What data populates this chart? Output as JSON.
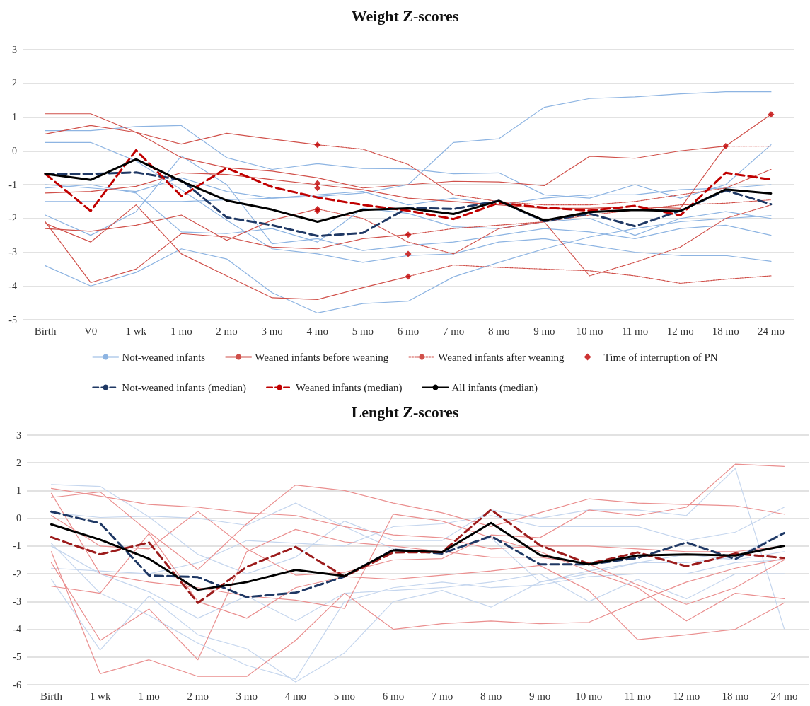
{
  "chart_data": [
    {
      "type": "line",
      "title": "Weight Z-scores",
      "categories": [
        "Birth",
        "V0",
        "1 wk",
        "1 mo",
        "2 mo",
        "3 mo",
        "4 mo",
        "5 mo",
        "6 mo",
        "7 mo",
        "8 mo",
        "9 mo",
        "10 mo",
        "11 mo",
        "12 mo",
        "18 mo",
        "24 mo"
      ],
      "ylim": [
        -5,
        3
      ],
      "yticks": [
        -5,
        -4,
        -3,
        -2,
        -1,
        0,
        1,
        2,
        3
      ],
      "grid": "y",
      "legend": "bottom",
      "marker": "none",
      "series": [
        {
          "name": "Not-weaned infants",
          "color": "#8db4e2",
          "line_style": "solid",
          "values": [
            -1.0,
            -1.1,
            -1.2,
            -0.8,
            -1.2,
            -1.4,
            -1.35,
            -1.25,
            -1.0,
            0.25,
            0.36,
            1.29,
            1.55,
            1.6,
            1.69,
            1.75,
            1.75
          ]
        },
        {
          "color": "#8db4e2",
          "line_style": "solid",
          "values": [
            -3.4,
            -4.0,
            -3.6,
            -2.9,
            -3.2,
            -4.2,
            -4.8,
            -4.52,
            -4.45,
            -3.73,
            -3.3,
            -2.9,
            -2.55,
            -2.3,
            -2.1,
            -2.0,
            -1.92
          ]
        },
        {
          "color": "#8db4e2",
          "line_style": "solid",
          "values": [
            0.6,
            0.6,
            0.72,
            0.75,
            -0.2,
            -0.55,
            -0.38,
            -0.52,
            -0.53,
            -0.68,
            -0.65,
            -1.3,
            -1.4,
            -1.0,
            -1.4,
            -1.0,
            0.18
          ]
        },
        {
          "color": "#8db4e2",
          "line_style": "solid",
          "values": [
            -1.9,
            -2.5,
            -1.8,
            -0.15,
            -1.0,
            -2.75,
            -2.6,
            -2.95,
            -2.8,
            -2.7,
            -2.5,
            -2.3,
            -2.4,
            -2.6,
            -2.3,
            -2.2,
            -2.5
          ]
        },
        {
          "color": "#8db4e2",
          "line_style": "solid",
          "values": [
            0.25,
            0.25,
            -0.3,
            -1.15,
            -2.05,
            -2.9,
            -3.05,
            -3.3,
            -3.1,
            -3.05,
            -2.7,
            -2.6,
            -2.8,
            -3.0,
            -3.1,
            -3.1,
            -3.27
          ]
        },
        {
          "color": "#8db4e2",
          "line_style": "solid",
          "values": [
            -1.5,
            -1.5,
            -1.5,
            -1.5,
            -1.45,
            -1.4,
            -1.3,
            -1.2,
            -1.6,
            -1.4,
            -1.6,
            -1.4,
            -1.3,
            -1.3,
            -1.15,
            -1.1,
            -1.0
          ]
        },
        {
          "color": "#8db4e2",
          "line_style": "solid",
          "values": [
            -1.1,
            -1.0,
            -1.25,
            -2.4,
            -2.45,
            -2.3,
            -2.7,
            -1.7,
            -1.85,
            -2.25,
            -2.3,
            -2.1,
            -2.0,
            -2.5,
            -2.0,
            -1.8,
            -2.0
          ]
        },
        {
          "name": "Weaned infants before weaning",
          "color": "#d0504a",
          "line_style": "solid",
          "values": [
            0.5,
            0.75,
            0.55,
            0.2,
            0.52,
            0.35,
            0.18,
            null,
            null,
            null,
            null,
            null,
            null,
            null,
            null,
            null,
            null
          ]
        },
        {
          "color": "#d0504a",
          "line_style": "solid",
          "values": [
            1.1,
            1.1,
            0.55,
            -0.2,
            -0.5,
            -0.6,
            -0.8,
            -1.1,
            -1.0,
            -0.9,
            -0.92,
            -1.03,
            -0.16,
            -0.22,
            0.0,
            0.14,
            null
          ]
        },
        {
          "color": "#d0504a",
          "line_style": "solid",
          "values": [
            -1.25,
            -1.2,
            -1.05,
            -0.65,
            -0.7,
            -0.85,
            -1.0,
            -1.15,
            -1.4,
            -1.5,
            -1.6,
            -1.7,
            -1.7,
            -1.65,
            -1.7,
            0.14,
            1.08
          ]
        },
        {
          "color": "#d0504a",
          "line_style": "solid",
          "values": [
            -2.1,
            -3.9,
            -3.5,
            -2.45,
            -2.55,
            -2.85,
            -2.9,
            -2.6,
            -2.48,
            null,
            null,
            null,
            null,
            null,
            null,
            null,
            null
          ]
        },
        {
          "color": "#d0504a",
          "line_style": "solid",
          "values": [
            -2.15,
            -2.7,
            -1.6,
            -3.05,
            -3.7,
            -4.35,
            -4.4,
            -4.05,
            -3.72,
            null,
            null,
            null,
            null,
            null,
            null,
            null,
            null
          ]
        },
        {
          "color": "#d0504a",
          "line_style": "solid",
          "values": [
            -2.3,
            -2.38,
            -2.2,
            -1.9,
            -2.65,
            -2.05,
            -1.72,
            null,
            null,
            null,
            null,
            null,
            null,
            null,
            null,
            null,
            null
          ]
        },
        {
          "name": "Weaned infants after weaning",
          "color": "#d0504a",
          "line_style": "dotted",
          "values": [
            null,
            null,
            null,
            null,
            null,
            null,
            0.18,
            0.05,
            -0.4,
            -1.3,
            -1.5,
            -1.6,
            -1.6,
            -1.5,
            -1.3,
            -1.1,
            -0.55
          ]
        },
        {
          "color": "#d0504a",
          "line_style": "dotted",
          "values": [
            null,
            null,
            null,
            null,
            null,
            null,
            null,
            null,
            null,
            null,
            null,
            null,
            null,
            null,
            null,
            0.14,
            0.14
          ]
        },
        {
          "color": "#d0504a",
          "line_style": "dotted",
          "values": [
            null,
            null,
            null,
            null,
            null,
            null,
            null,
            null,
            -2.48,
            -2.3,
            -2.2,
            -2.1,
            -1.9,
            -1.75,
            -1.6,
            -1.55,
            -1.45
          ]
        },
        {
          "color": "#d0504a",
          "line_style": "dotted",
          "values": [
            null,
            null,
            null,
            null,
            null,
            null,
            null,
            null,
            -3.72,
            -3.38,
            -3.45,
            -3.5,
            -3.55,
            -3.7,
            -3.92,
            -3.8,
            -3.7
          ]
        },
        {
          "color": "#d0504a",
          "line_style": "dotted",
          "values": [
            null,
            null,
            null,
            null,
            null,
            null,
            -1.72,
            -2.0,
            -2.7,
            -3.05,
            -2.3,
            -2.1,
            -3.7,
            -3.3,
            -2.85,
            -2.0,
            -1.6
          ]
        },
        {
          "name": "Time of interruption of PN",
          "type": "scatter",
          "marker": "diamond",
          "color": "#c00000",
          "x": [
            "4 mo",
            "4 mo",
            "4 mo",
            "4 mo",
            "4 mo",
            "6 mo",
            "6 mo",
            "6 mo",
            "18 mo",
            "24 mo"
          ],
          "values": [
            0.18,
            -0.96,
            -1.1,
            -1.72,
            -1.78,
            -2.48,
            -3.05,
            -3.72,
            0.14,
            1.08
          ]
        },
        {
          "name": "Not-weaned infants (median)",
          "color": "#1f3864",
          "line_style": "dashed",
          "values": [
            -0.68,
            -0.68,
            -0.64,
            -0.86,
            -1.97,
            -2.2,
            -2.52,
            -2.43,
            -1.68,
            -1.72,
            -1.48,
            -2.08,
            -1.86,
            -2.23,
            -1.77,
            -1.17,
            -1.58
          ]
        },
        {
          "name": "Weaned infants (median)",
          "color": "#c00000",
          "line_style": "dashed",
          "values": [
            -0.68,
            -1.78,
            0.02,
            -1.34,
            -0.51,
            -1.07,
            -1.38,
            -1.6,
            -1.77,
            -2.02,
            -1.54,
            -1.68,
            -1.77,
            -1.63,
            -1.91,
            -0.65,
            -0.85
          ]
        },
        {
          "name": "All infants (median)",
          "color": "#000000",
          "line_style": "solid",
          "values": [
            -0.68,
            -0.86,
            -0.25,
            -0.9,
            -1.47,
            -1.74,
            -2.1,
            -1.75,
            -1.7,
            -1.87,
            -1.48,
            -2.06,
            -1.81,
            -1.75,
            -1.78,
            -1.14,
            -1.26
          ]
        }
      ]
    },
    {
      "type": "line",
      "title": "Lenght Z-scores",
      "categories": [
        "Birth",
        "1 wk",
        "1 mo",
        "2 mo",
        "3 mo",
        "4 mo",
        "5 mo",
        "6 mo",
        "7 mo",
        "8 mo",
        "9 mo",
        "10 mo",
        "11 mo",
        "12 mo",
        "18 mo",
        "24 mo"
      ],
      "ylim": [
        -6,
        3
      ],
      "yticks": [
        -6,
        -5,
        -4,
        -3,
        -2,
        -1,
        0,
        1,
        2,
        3
      ],
      "grid": "y",
      "marker": "none",
      "series": [
        {
          "color": "#c5d6ee",
          "line_style": "solid",
          "values": [
            1.22,
            1.15,
            0.05,
            -1.3,
            -2.0,
            -1.4,
            -0.1,
            -0.8,
            -0.8,
            0.3,
            0.0,
            0.3,
            0.3,
            0.1,
            1.8,
            -3.98
          ]
        },
        {
          "color": "#c5d6ee",
          "line_style": "solid",
          "values": [
            0.2,
            0.03,
            0.08,
            0.0,
            -0.25,
            0.55,
            -0.3,
            -1.1,
            -1.2,
            -0.7,
            -2.3,
            -1.9,
            -1.6,
            -1.6,
            -1.4,
            -0.5
          ]
        },
        {
          "color": "#c5d6ee",
          "line_style": "solid",
          "values": [
            -2.2,
            -4.75,
            -2.8,
            -4.2,
            -4.7,
            -5.9,
            -4.85,
            -3.0,
            -2.6,
            -3.2,
            -2.3,
            -2.0,
            -1.6,
            -1.3,
            -1.5,
            -1.2
          ]
        },
        {
          "color": "#c5d6ee",
          "line_style": "solid",
          "values": [
            -1.0,
            -2.0,
            -2.65,
            -3.6,
            -2.8,
            -3.7,
            -2.7,
            -2.6,
            -2.5,
            -2.3,
            -2.0,
            -3.0,
            -2.2,
            -2.9,
            -2.0,
            -2.0
          ]
        },
        {
          "color": "#c5d6ee",
          "line_style": "solid",
          "values": [
            -1.8,
            -1.9,
            -2.0,
            -1.6,
            -0.8,
            -0.9,
            -1.0,
            -0.3,
            -0.2,
            0.1,
            -0.3,
            -0.3,
            -0.3,
            -0.8,
            -0.5,
            0.4
          ]
        },
        {
          "color": "#c5d6ee",
          "line_style": "solid",
          "values": [
            -0.9,
            -2.7,
            -3.5,
            -4.5,
            -5.3,
            -5.8,
            -3.0,
            -2.5,
            -2.3,
            -2.5,
            -2.4,
            -2.1,
            -2.0,
            -2.0,
            -1.6,
            -1.5
          ]
        },
        {
          "color": "#ea8f8f",
          "line_style": "solid",
          "values": [
            1.08,
            0.8,
            0.5,
            0.4,
            0.2,
            0.1,
            -0.3,
            -0.6,
            -0.7,
            -1.1,
            -1.0,
            -1.0,
            -1.1,
            -1.2,
            -1.2,
            -1.0
          ]
        },
        {
          "color": "#ea8f8f",
          "line_style": "solid",
          "values": [
            0.75,
            0.95,
            -0.5,
            -1.85,
            -0.2,
            1.2,
            1.0,
            0.55,
            0.2,
            -0.3,
            0.2,
            0.7,
            0.55,
            0.5,
            0.45,
            0.15
          ]
        },
        {
          "color": "#ea8f8f",
          "line_style": "solid",
          "values": [
            0.9,
            -2.0,
            -2.3,
            -2.5,
            -2.8,
            -2.95,
            -3.25,
            0.15,
            -0.1,
            -0.7,
            -1.2,
            -1.9,
            -2.5,
            -3.7,
            -2.7,
            -2.9
          ]
        },
        {
          "color": "#ea8f8f",
          "line_style": "solid",
          "values": [
            -1.2,
            -5.6,
            -5.1,
            -5.7,
            -5.7,
            -4.4,
            -2.7,
            -4.0,
            -3.8,
            -3.7,
            -3.8,
            -3.75,
            -3.0,
            -2.3,
            -1.8,
            -1.45
          ]
        },
        {
          "color": "#ea8f8f",
          "line_style": "solid",
          "values": [
            -1.6,
            -4.4,
            -3.27,
            -5.1,
            -1.2,
            -0.4,
            -0.85,
            -1.0,
            -1.2,
            -1.4,
            -1.4,
            -1.65,
            -2.4,
            -3.1,
            -2.5,
            -1.5
          ]
        },
        {
          "color": "#ea8f8f",
          "line_style": "solid",
          "values": [
            -2.45,
            -2.7,
            -0.55,
            -3.0,
            -3.6,
            -2.5,
            -2.1,
            -2.2,
            -2.05,
            -1.9,
            -1.7,
            -2.6,
            -4.37,
            -4.2,
            -4.0,
            -3.05
          ]
        },
        {
          "color": "#ea8f8f",
          "line_style": "solid",
          "values": [
            0.1,
            -1.0,
            -1.1,
            0.25,
            -1.1,
            -2.05,
            -1.95,
            -1.5,
            -1.45,
            -0.6,
            -0.7,
            0.3,
            0.1,
            0.4,
            1.95,
            1.87
          ]
        },
        {
          "color": "#1f3864",
          "line_style": "dashed",
          "values": [
            0.24,
            -0.18,
            -2.06,
            -2.12,
            -2.84,
            -2.68,
            -2.1,
            -1.13,
            -1.27,
            -0.64,
            -1.66,
            -1.66,
            -1.43,
            -0.87,
            -1.47,
            -0.53
          ]
        },
        {
          "color": "#9c1c1c",
          "line_style": "dashed",
          "values": [
            -0.68,
            -1.3,
            -0.87,
            -3.05,
            -1.75,
            -1.03,
            -2.1,
            -1.23,
            -1.22,
            0.31,
            -0.97,
            -1.64,
            -1.23,
            -1.73,
            -1.27,
            -1.43
          ]
        },
        {
          "color": "#000000",
          "line_style": "solid",
          "values": [
            -0.22,
            -0.77,
            -1.46,
            -2.58,
            -2.3,
            -1.86,
            -2.08,
            -1.15,
            -1.22,
            -0.17,
            -1.32,
            -1.66,
            -1.34,
            -1.3,
            -1.34,
            -0.99
          ]
        }
      ]
    }
  ]
}
